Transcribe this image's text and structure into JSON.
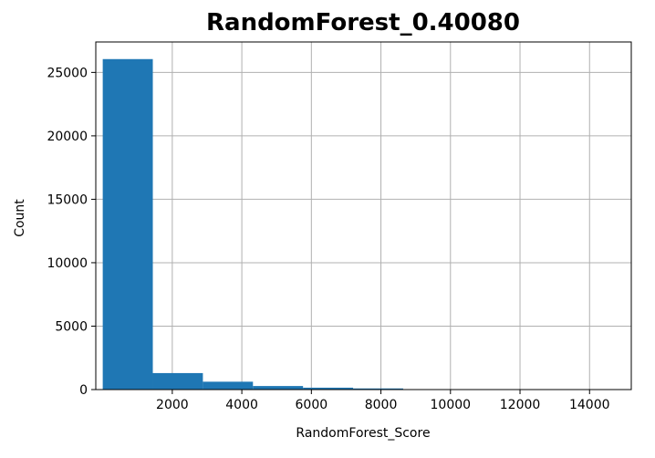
{
  "chart_data": {
    "type": "bar",
    "title": "RandomForest_0.40080",
    "xlabel": "RandomForest_Score",
    "ylabel": "Count",
    "x_ticks": [
      2000,
      4000,
      6000,
      8000,
      10000,
      12000,
      14000
    ],
    "y_ticks": [
      0,
      5000,
      10000,
      15000,
      20000,
      25000
    ],
    "xlim": [
      -200,
      15200
    ],
    "ylim": [
      0,
      27400
    ],
    "grid": true,
    "legend": "none",
    "bar_color": "#1f77b4",
    "bins": [
      {
        "x0": 0,
        "x1": 1440,
        "count": 26050
      },
      {
        "x0": 1440,
        "x1": 2880,
        "count": 1300
      },
      {
        "x0": 2880,
        "x1": 4320,
        "count": 620
      },
      {
        "x0": 4320,
        "x1": 5760,
        "count": 280
      },
      {
        "x0": 5760,
        "x1": 7200,
        "count": 150
      },
      {
        "x0": 7200,
        "x1": 8640,
        "count": 90
      },
      {
        "x0": 8640,
        "x1": 10080,
        "count": 15
      },
      {
        "x0": 10080,
        "x1": 11520,
        "count": 8
      },
      {
        "x0": 11520,
        "x1": 12960,
        "count": 4
      },
      {
        "x0": 12960,
        "x1": 14400,
        "count": 2
      }
    ]
  }
}
